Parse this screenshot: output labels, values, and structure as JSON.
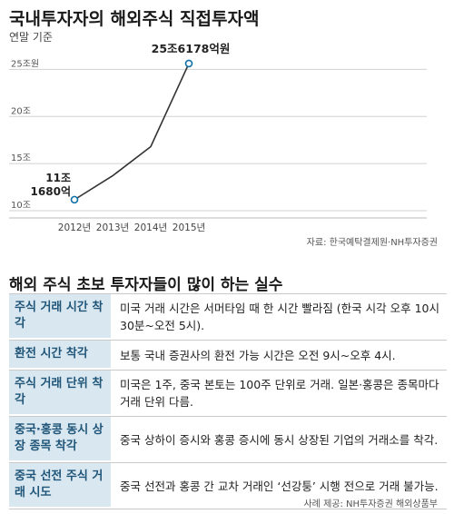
{
  "title": "국내투자자의 해외주식 직접투자액",
  "subtitle": "연말 기준",
  "source": "자료: 한국예탁결제원·NH투자증권",
  "chart_data": {
    "type": "line",
    "x": [
      "2012년",
      "2013년",
      "2014년",
      "2015년"
    ],
    "series": [
      {
        "values": [
          11.168,
          13.7,
          16.8,
          25.6178
        ]
      }
    ],
    "y_ticks": [
      "10조",
      "15조",
      "20조",
      "25조원"
    ],
    "ylim": [
      10,
      26
    ],
    "annotations": {
      "first_line1": "11조",
      "first_line2": "1680억",
      "last": "25조6178억원"
    },
    "line_color": "#333333",
    "marker_color": "#0f6fa8"
  },
  "section_title": "해외 주식 초보 투자자들이 많이 하는 실수",
  "mistakes": [
    {
      "label": "주식 거래 시간 착각",
      "desc": "미국 거래 시간은 서머타임 때 한 시간 빨라짐 (한국 시각 오후 10시 30분~오전 5시)."
    },
    {
      "label": "환전 시간 착각",
      "desc": "보통 국내 증권사의 환전 가능 시간은 오전 9시~오후 4시."
    },
    {
      "label": "주식 거래 단위 착각",
      "desc": "미국은 1주, 중국 본토는 100주 단위로 거래. 일본·홍콩은 종목마다 거래 단위 다름."
    },
    {
      "label": "중국·홍콩 동시 상장 종목 착각",
      "desc": "중국 상하이 증시와 홍콩 증시에 동시 상장된 기업의 거래소를 착각."
    },
    {
      "label": "중국 선전 주식 거래 시도",
      "desc": "중국 선전과 홍콩 간 교차 거래인 ‘선강퉁’ 시행 전으로 거래 불가능."
    }
  ],
  "credit": "사례 제공: NH투자증권 해외상품부"
}
